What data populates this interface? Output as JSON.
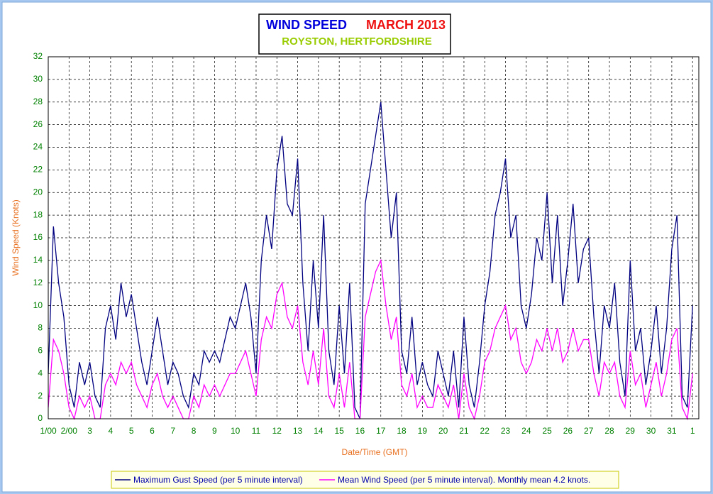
{
  "chart_data": {
    "type": "line",
    "title": "WIND SPEED",
    "title_period": "MARCH 2013",
    "subtitle": "ROYSTON, HERTFORDSHIRE",
    "xlabel": "Date/Time (GMT)",
    "ylabel": "Wind Speed (Knots)",
    "xlim": [
      0,
      31.3
    ],
    "ylim": [
      0,
      32
    ],
    "yticks": [
      0,
      2,
      4,
      6,
      8,
      10,
      12,
      14,
      16,
      18,
      20,
      22,
      24,
      26,
      28,
      30,
      32
    ],
    "xticks": [
      {
        "value": 0,
        "label": "1/00"
      },
      {
        "value": 1,
        "label": "2/00"
      },
      {
        "value": 2,
        "label": "3"
      },
      {
        "value": 3,
        "label": "4"
      },
      {
        "value": 4,
        "label": "5"
      },
      {
        "value": 5,
        "label": "6"
      },
      {
        "value": 6,
        "label": "7"
      },
      {
        "value": 7,
        "label": "8"
      },
      {
        "value": 8,
        "label": "9"
      },
      {
        "value": 9,
        "label": "10"
      },
      {
        "value": 10,
        "label": "11"
      },
      {
        "value": 11,
        "label": "12"
      },
      {
        "value": 12,
        "label": "13"
      },
      {
        "value": 13,
        "label": "14"
      },
      {
        "value": 14,
        "label": "15"
      },
      {
        "value": 15,
        "label": "16"
      },
      {
        "value": 16,
        "label": "17"
      },
      {
        "value": 17,
        "label": "18"
      },
      {
        "value": 18,
        "label": "19"
      },
      {
        "value": 19,
        "label": "20"
      },
      {
        "value": 20,
        "label": "21"
      },
      {
        "value": 21,
        "label": "22"
      },
      {
        "value": 22,
        "label": "23"
      },
      {
        "value": 23,
        "label": "24"
      },
      {
        "value": 24,
        "label": "25"
      },
      {
        "value": 25,
        "label": "26"
      },
      {
        "value": 26,
        "label": "27"
      },
      {
        "value": 27,
        "label": "28"
      },
      {
        "value": 28,
        "label": "29"
      },
      {
        "value": 29,
        "label": "30"
      },
      {
        "value": 30,
        "label": "31"
      },
      {
        "value": 31,
        "label": "1"
      }
    ],
    "grid": true,
    "x": [
      0,
      0.25,
      0.5,
      0.75,
      1,
      1.25,
      1.5,
      1.75,
      2,
      2.25,
      2.5,
      2.75,
      3,
      3.25,
      3.5,
      3.75,
      4,
      4.25,
      4.5,
      4.75,
      5,
      5.25,
      5.5,
      5.75,
      6,
      6.25,
      6.5,
      6.75,
      7,
      7.25,
      7.5,
      7.75,
      8,
      8.25,
      8.5,
      8.75,
      9,
      9.25,
      9.5,
      9.75,
      10,
      10.25,
      10.5,
      10.75,
      11,
      11.25,
      11.5,
      11.75,
      12,
      12.25,
      12.5,
      12.75,
      13,
      13.25,
      13.5,
      13.75,
      14,
      14.25,
      14.5,
      14.75,
      15,
      15.25,
      15.5,
      15.75,
      16,
      16.25,
      16.5,
      16.75,
      17,
      17.25,
      17.5,
      17.75,
      18,
      18.25,
      18.5,
      18.75,
      19,
      19.25,
      19.5,
      19.75,
      20,
      20.25,
      20.5,
      20.75,
      21,
      21.25,
      21.5,
      21.75,
      22,
      22.25,
      22.5,
      22.75,
      23,
      23.25,
      23.5,
      23.75,
      24,
      24.25,
      24.5,
      24.75,
      25,
      25.25,
      25.5,
      25.75,
      26,
      26.25,
      26.5,
      26.75,
      27,
      27.25,
      27.5,
      27.75,
      28,
      28.25,
      28.5,
      28.75,
      29,
      29.25,
      29.5,
      29.75,
      30,
      30.25,
      30.5,
      30.75,
      31
    ],
    "series": [
      {
        "name": "Maximum Gust Speed (per 5 minute interval)",
        "color": "#000080",
        "values": [
          4,
          17,
          12,
          9,
          3,
          1,
          5,
          3,
          5,
          2,
          1,
          8,
          10,
          7,
          12,
          9,
          11,
          8,
          5,
          3,
          6,
          9,
          6,
          3,
          5,
          4,
          2,
          1,
          4,
          3,
          6,
          5,
          6,
          5,
          7,
          9,
          8,
          10,
          12,
          9,
          4,
          14,
          18,
          15,
          22,
          25,
          19,
          18,
          23,
          12,
          6,
          14,
          8,
          18,
          6,
          3,
          10,
          4,
          12,
          1,
          0,
          19,
          22,
          25,
          28,
          22,
          16,
          20,
          6,
          4,
          9,
          3,
          5,
          3,
          2,
          6,
          4,
          2,
          6,
          1,
          9,
          3,
          1,
          5,
          10,
          13,
          18,
          20,
          23,
          16,
          18,
          10,
          8,
          11,
          16,
          14,
          20,
          12,
          18,
          10,
          14,
          19,
          12,
          15,
          16,
          9,
          4,
          10,
          8,
          12,
          5,
          2,
          14,
          6,
          8,
          3,
          6,
          10,
          4,
          8,
          15,
          18,
          2,
          1,
          10
        ]
      },
      {
        "name": "Mean Wind Speed (per 5 minute interval). Monthly mean 4.2 knots.",
        "color": "#ff00ff",
        "values": [
          1,
          7,
          6,
          4,
          1,
          0,
          2,
          1,
          2,
          0,
          0,
          3,
          4,
          3,
          5,
          4,
          5,
          3,
          2,
          1,
          3,
          4,
          2,
          1,
          2,
          1,
          0,
          0,
          2,
          1,
          3,
          2,
          3,
          2,
          3,
          4,
          4,
          5,
          6,
          4,
          2,
          7,
          9,
          8,
          11,
          12,
          9,
          8,
          10,
          5,
          3,
          6,
          3,
          8,
          2,
          1,
          4,
          1,
          5,
          0,
          0,
          9,
          11,
          13,
          14,
          10,
          7,
          9,
          3,
          2,
          4,
          1,
          2,
          1,
          1,
          3,
          2,
          1,
          3,
          0,
          4,
          1,
          0,
          2,
          5,
          6,
          8,
          9,
          10,
          7,
          8,
          5,
          4,
          5,
          7,
          6,
          8,
          6,
          8,
          5,
          6,
          8,
          6,
          7,
          7,
          4,
          2,
          5,
          4,
          5,
          2,
          1,
          6,
          3,
          4,
          1,
          3,
          5,
          2,
          4,
          7,
          8,
          1,
          0,
          4
        ]
      }
    ]
  }
}
